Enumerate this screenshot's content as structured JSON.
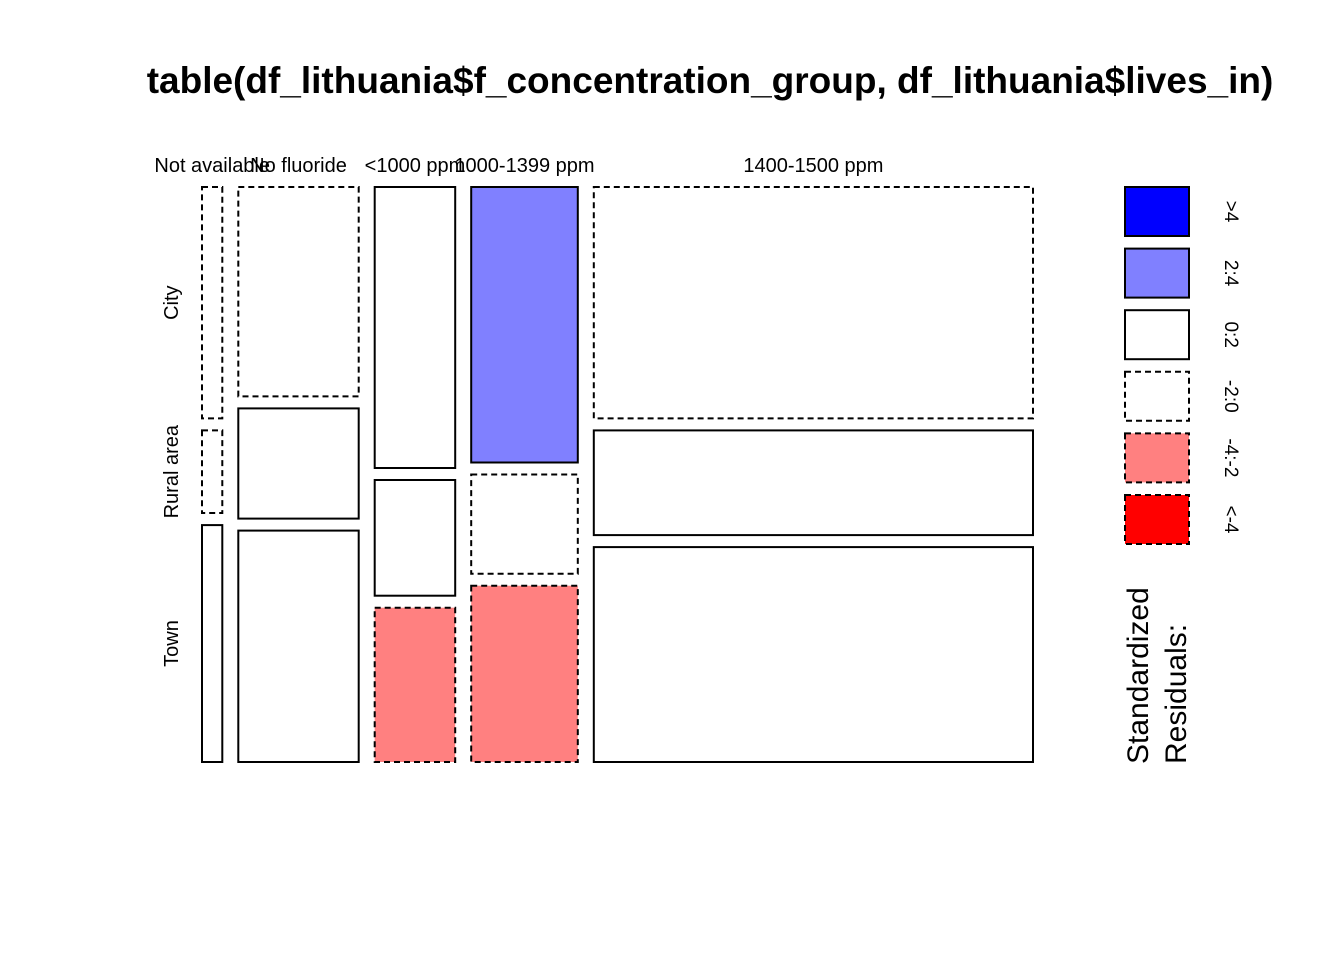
{
  "chart_data": {
    "type": "mosaic",
    "title": "table(df_lithuania$f_concentration_group, df_lithuania$lives_in)",
    "columns": [
      "Not available",
      "No fluoride",
      "<1000 ppm",
      "1000-1399 ppm",
      "1400-1500 ppm"
    ],
    "rows": [
      "City",
      "Rural area",
      "Town"
    ],
    "column_share": [
      0.025,
      0.148,
      0.099,
      0.131,
      0.54
    ],
    "row_share": [
      [
        0.42,
        0.15,
        0.43
      ],
      [
        0.38,
        0.2,
        0.42
      ],
      [
        0.51,
        0.21,
        0.28
      ],
      [
        0.5,
        0.18,
        0.32
      ],
      [
        0.42,
        0.19,
        0.39
      ]
    ],
    "residual_class": [
      [
        "-2:0",
        "-2:0",
        "0:2"
      ],
      [
        "-2:0",
        "0:2",
        "0:2"
      ],
      [
        "0:2",
        "0:2",
        "-4:-2"
      ],
      [
        "2:4",
        "-2:0",
        "-4:-2"
      ],
      [
        "-2:0",
        "0:2",
        "0:2"
      ]
    ],
    "legend": {
      "title_lines": [
        "Standardized",
        "Residuals:"
      ],
      "entries": [
        {
          "label": ">4",
          "color": "#0000ff",
          "dashed": false
        },
        {
          "label": "2:4",
          "color": "#8080ff",
          "dashed": false
        },
        {
          "label": "0:2",
          "color": "#ffffff",
          "dashed": false
        },
        {
          "label": "-2:0",
          "color": "#ffffff",
          "dashed": true
        },
        {
          "label": "-4:-2",
          "color": "#ff8080",
          "dashed": true
        },
        {
          "label": "<-4",
          "color": "#ff0000",
          "dashed": true
        }
      ]
    }
  }
}
